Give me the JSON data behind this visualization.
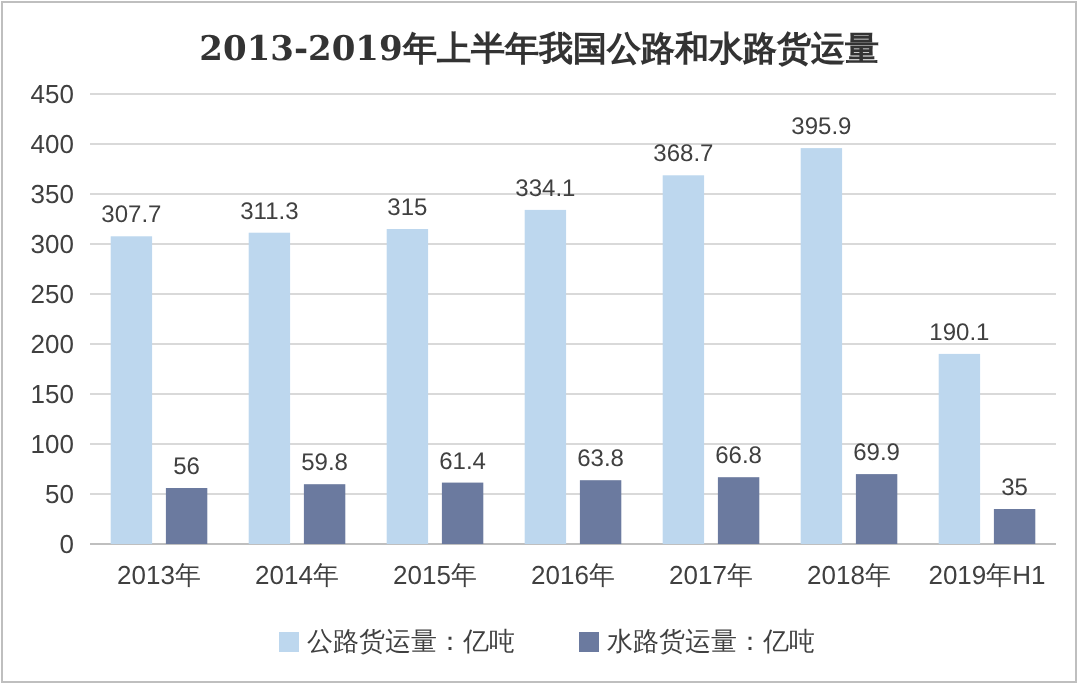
{
  "chart_data": {
    "type": "bar",
    "title": "2013-2019年上半年我国公路和水路货运量",
    "categories": [
      "2013年",
      "2014年",
      "2015年",
      "2016年",
      "2017年",
      "2018年",
      "2019年H1"
    ],
    "series": [
      {
        "name": "公路货运量：亿吨",
        "color": "#bdd7ee",
        "values": [
          307.7,
          311.3,
          315,
          334.1,
          368.7,
          395.9,
          190.1
        ]
      },
      {
        "name": "水路货运量：亿吨",
        "color": "#6b7a9f",
        "values": [
          56,
          59.8,
          61.4,
          63.8,
          66.8,
          69.9,
          35
        ]
      }
    ],
    "ylim": [
      0,
      450
    ],
    "yticks": [
      0,
      50,
      100,
      150,
      200,
      250,
      300,
      350,
      400,
      450
    ],
    "grid": "y",
    "legend": "bottom",
    "data_labels": true
  }
}
